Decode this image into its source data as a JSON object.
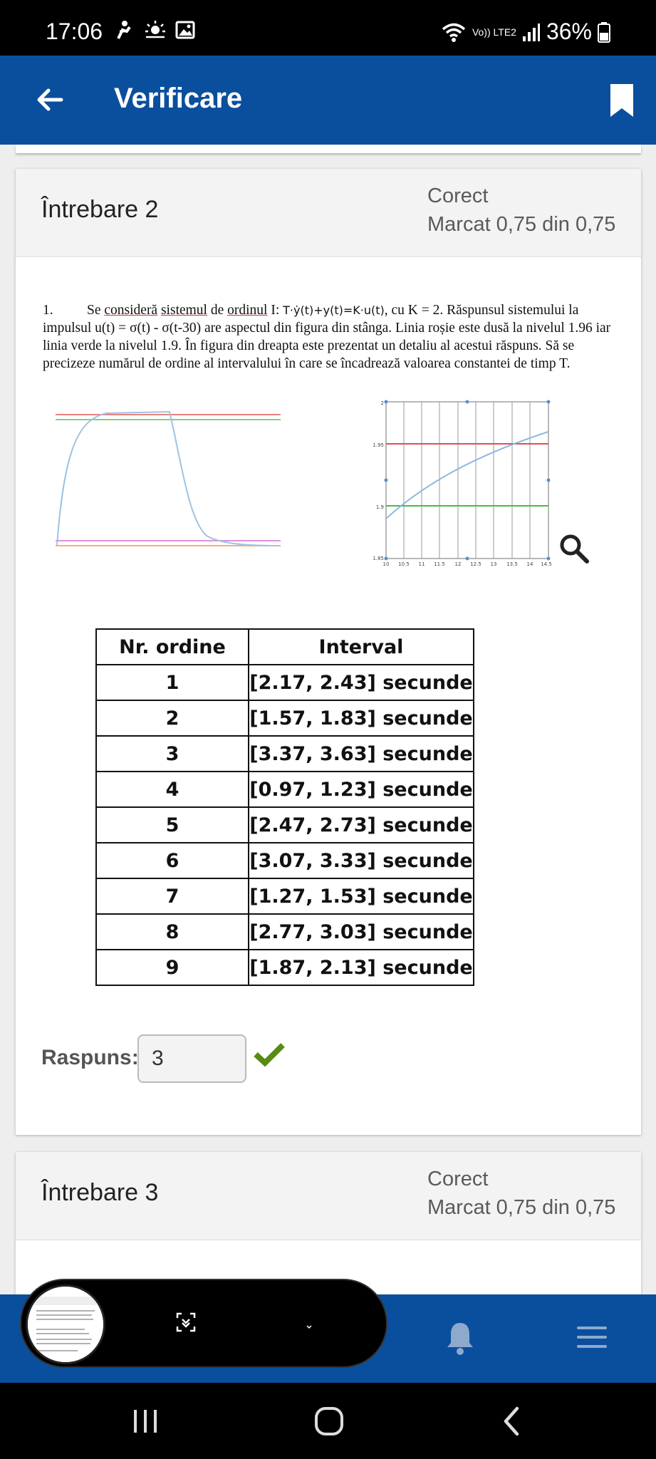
{
  "status_bar": {
    "time": "17:06",
    "network": "Vo)) LTE2",
    "battery": "36%"
  },
  "app_bar": {
    "title": "Verificare"
  },
  "question2": {
    "title": "Întrebare 2",
    "status": "Corect",
    "mark": "Marcat 0,75 din 0,75",
    "number": "1.",
    "text_lead": "Se ",
    "text_w1": "consideră",
    "text_sp1": " ",
    "text_w2": "sistemul",
    "text_mid": " de ",
    "text_w3": "ordinul",
    "text_order": " I: ",
    "equation": "T·ẏ(t)+y(t)=K·u(t)",
    "text_rest": ", cu K = 2. Răspunsul sistemului la impulsul u(t) = σ(t) - σ(t-30) are aspectul din figura din stânga. Linia roșie este dusă la nivelul 1.96 iar linia verde la nivelul 1.9. În figura din dreapta este prezentat un detaliu al acestui răspuns. Să se precizeze numărul de ordine al intervalului în care se încadrează valoarea constantei de timp T.",
    "table": {
      "headers": [
        "Nr. ordine",
        "Interval"
      ],
      "rows": [
        [
          "1",
          "[2.17, 2.43] secunde"
        ],
        [
          "2",
          "[1.57, 1.83] secunde"
        ],
        [
          "3",
          "[3.37, 3.63]  secunde"
        ],
        [
          "4",
          "[0.97, 1.23] secunde"
        ],
        [
          "5",
          "[2.47, 2.73] secunde"
        ],
        [
          "6",
          "[3.07, 3.33] secunde"
        ],
        [
          "7",
          "[1.27, 1.53] secunde"
        ],
        [
          "8",
          "[2.77, 3.03] secunde"
        ],
        [
          "9",
          "[1.87, 2.13] secunde"
        ]
      ]
    },
    "answer_label": "Raspuns:",
    "answer_value": "3",
    "detail_chart": {
      "y_ticks": [
        "2",
        "1.95",
        "1.9",
        "1.85"
      ],
      "x_ticks": [
        "10",
        "10.5",
        "11",
        "11.5",
        "12",
        "12.5",
        "13",
        "13.5",
        "14",
        "14.5"
      ]
    }
  },
  "question3": {
    "title": "Întrebare 3",
    "status": "Corect",
    "mark": "Marcat 0,75 din 0,75"
  },
  "colors": {
    "app_bar": "#0a4f9e",
    "correct_check": "#5a8a14",
    "red_line": "#e05050",
    "green_line": "#40c040"
  }
}
